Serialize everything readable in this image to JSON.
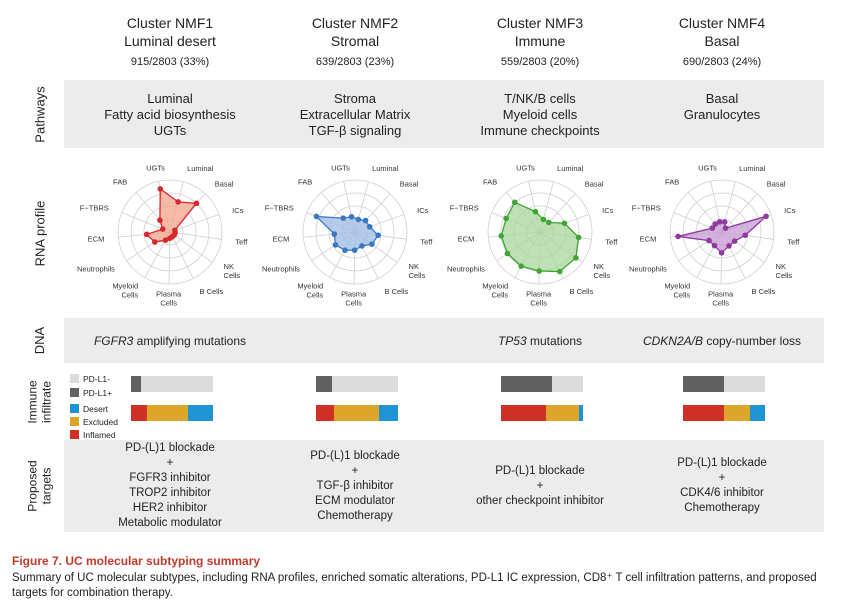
{
  "clusters": [
    {
      "name": "Cluster NMF1",
      "subtitle": "Luminal desert",
      "count": "915/2803 (33%)",
      "pathways": [
        "Luminal",
        "Fatty acid biosynthesis",
        "UGTs"
      ],
      "dna_italic": "FGFR3",
      "dna_rest": " amplifying mutations",
      "targets": [
        "PD-(L)1 blockade",
        "+",
        "FGFR3 inhibitor",
        "TROP2 inhibitor",
        "HER2 inhibitor",
        "Metabolic modulator"
      ],
      "color": "#d9272e",
      "fill": "#f4a58a",
      "profile": [
        0.6,
        0.75,
        0.1,
        0.1,
        0.1,
        0.1,
        0.12,
        0.18,
        0.35,
        0.45,
        0.15,
        0.3,
        0.85
      ],
      "pdl1_pos": 0.12,
      "infiltration": {
        "inflamed": 0.2,
        "excluded": 0.5,
        "desert": 0.3
      }
    },
    {
      "name": "Cluster NMF2",
      "subtitle": "Stromal",
      "count": "639/2803 (23%)",
      "pathways": [
        "Stroma",
        "Extracellular Matrix",
        "TGF-β signaling"
      ],
      "dna_italic": "",
      "dna_rest": "",
      "targets": [
        "PD-(L)1 blockade",
        "+",
        "TGF-β inhibitor",
        "ECM modulator",
        "Chemotherapy"
      ],
      "color": "#3a78c2",
      "fill": "#9dbbe3",
      "profile": [
        0.25,
        0.3,
        0.3,
        0.45,
        0.4,
        0.3,
        0.35,
        0.4,
        0.45,
        0.4,
        0.8,
        0.35,
        0.3
      ],
      "pdl1_pos": 0.2,
      "infiltration": {
        "inflamed": 0.22,
        "excluded": 0.55,
        "desert": 0.23
      }
    },
    {
      "name": "Cluster NMF3",
      "subtitle": "Immune",
      "count": "559/2803 (20%)",
      "pathways": [
        "T/NK/B cells",
        "Myeloid cells",
        "Immune checkpoints"
      ],
      "dna_italic": "TP53",
      "dna_rest": " mutations",
      "targets": [
        "PD-(L)1 blockade",
        "+",
        "other checkpoint inhibitor"
      ],
      "color": "#3fa535",
      "fill": "#a9d69c",
      "profile": [
        0.25,
        0.25,
        0.5,
        0.75,
        0.85,
        0.85,
        0.75,
        0.75,
        0.75,
        0.75,
        0.7,
        0.75,
        0.4
      ],
      "pdl1_pos": 0.62,
      "infiltration": {
        "inflamed": 0.55,
        "excluded": 0.4,
        "desert": 0.05
      }
    },
    {
      "name": "Cluster NMF4",
      "subtitle": "Basal",
      "count": "690/2803 (24%)",
      "pathways": [
        "Basal",
        "Granulocytes"
      ],
      "dna_italic": "CDKN2A/B",
      "dna_rest": " copy-number loss",
      "targets": [
        "PD-(L)1 blockade",
        "+",
        "CDK4/6 inhibitor",
        "Chemotherapy"
      ],
      "color": "#8e3a9e",
      "fill": "#c59bd0",
      "profile": [
        0.2,
        0.1,
        0.9,
        0.45,
        0.3,
        0.3,
        0.4,
        0.3,
        0.3,
        0.85,
        0.2,
        0.2,
        0.2
      ],
      "pdl1_pos": 0.5,
      "infiltration": {
        "inflamed": 0.5,
        "excluded": 0.32,
        "desert": 0.18
      }
    }
  ],
  "radar_axes": [
    "Luminal",
    "Basal",
    "ICs",
    "Teff",
    "NK\nCells",
    "B Cells",
    "Plasma\nCells",
    "Myeloid\nCells",
    "Neutrophils",
    "ECM",
    "F−TBRS",
    "FAB",
    "UGTs"
  ],
  "row_labels": {
    "pathways": "Pathways",
    "rna": "RNA profile",
    "dna": "DNA",
    "immune": "Immune\ninfiltrate",
    "targets": "Proposed\ntargets"
  },
  "legend": {
    "pdl1_neg": "PD-L1-",
    "pdl1_pos": "PD-L1+",
    "desert": "Desert",
    "excluded": "Excluded",
    "inflamed": "Inflamed"
  },
  "colors": {
    "pdl1_neg": "#dcdcdc",
    "pdl1_pos": "#616161",
    "desert": "#1f93d3",
    "excluded": "#dca62a",
    "inflamed": "#cf3126"
  },
  "caption": {
    "title": "Figure 7. UC molecular subtyping summary",
    "body": "Summary of UC molecular subtypes, including RNA profiles, enriched somatic alterations, PD-L1 IC expression, CD8⁺ T cell infiltration patterns, and proposed targets for combination therapy."
  }
}
